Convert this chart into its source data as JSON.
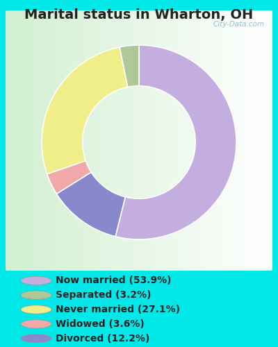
{
  "title": "Marital status in Wharton, OH",
  "labels": [
    "Now married (53.9%)",
    "Separated (3.2%)",
    "Never married (27.1%)",
    "Widowed (3.6%)",
    "Divorced (12.2%)"
  ],
  "slice_colors": [
    "#c4aee0",
    "#b0c898",
    "#f0ee88",
    "#f0a8a8",
    "#8888cc"
  ],
  "legend_colors": [
    "#c4aee0",
    "#b0c898",
    "#f0ee88",
    "#f0a8a8",
    "#8888cc"
  ],
  "cw_sizes": [
    53.9,
    12.2,
    3.6,
    27.1,
    3.2
  ],
  "cw_colors": [
    "#c4aee0",
    "#8888cc",
    "#f0a8a8",
    "#f0ee88",
    "#b0c898"
  ],
  "background_cyan": "#00e8e8",
  "background_panel": "#d0eedd",
  "title_fontsize": 14,
  "legend_fontsize": 10,
  "watermark": "City-Data.com",
  "title_color": "#222222"
}
